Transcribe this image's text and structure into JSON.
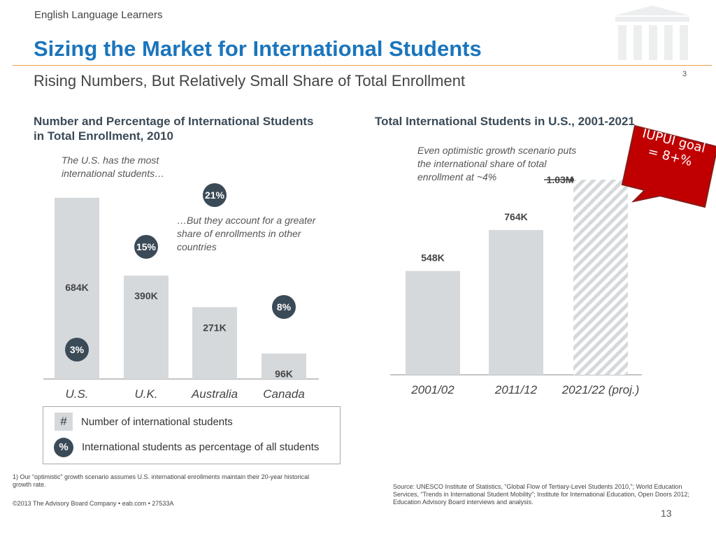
{
  "header": {
    "kicker": "English Language Learners",
    "title": "Sizing the Market for International Students",
    "subtitle": "Rising Numbers, But Relatively Small Share of Total Enrollment",
    "page_small": "3"
  },
  "left_chart": {
    "note_top": "The U.S. has the most international students…",
    "note_mid": "…But they account for a greater share of enrollments in other countries"
  },
  "right_chart": {
    "note": "Even optimistic growth scenario puts the international share of total enrollment at ~4%"
  },
  "legend": {
    "hash_symbol": "#",
    "hash_label": "Number of international students",
    "pct_symbol": "%",
    "pct_label": "International students as percentage of all students"
  },
  "callout": {
    "text": "IUPUI goal = 8+%",
    "color": "#c00000"
  },
  "footer": {
    "footnote": "1) Our “optimistic” growth scenario assumes U.S. international enrollments maintain their 20-year historical growth rate.",
    "copyright": "©2013 The Advisory Board Company • eab.com • 27533A",
    "source": "Source: UNESCO Institute of Statistics, “Global Flow of Tertiary-Level Students 2010,”; World Education Services, “Trends in International Student Mobility”; Institute for International Education, Open Doors 2012; Education Advisory Board interviews and analysis.",
    "page": "13"
  },
  "colors": {
    "bar": "#d5d9dc",
    "bubble": "#3b4a57",
    "title": "#1b75bc",
    "rule": "#e8a043"
  },
  "chart_data": [
    {
      "type": "bar",
      "title": "Number and Percentage of International Students in Total Enrollment, 2010",
      "categories": [
        "U.S.",
        "U.K.",
        "Australia",
        "Canada"
      ],
      "values": [
        684,
        390,
        271,
        96
      ],
      "value_labels": [
        "684K",
        "390K",
        "271K",
        "96K"
      ],
      "percent_values": [
        3,
        15,
        21,
        8
      ],
      "percent_labels": [
        "3%",
        "15%",
        "21%",
        "8%"
      ],
      "ylim": [
        0,
        700
      ],
      "grid": false
    },
    {
      "type": "bar",
      "title": "Total International Students in U.S., 2001-2021",
      "categories": [
        "2001/02",
        "2011/12",
        "2021/22 (proj.)"
      ],
      "values": [
        548,
        764,
        1030
      ],
      "value_labels": [
        "548K",
        "764K",
        "1.03M"
      ],
      "projected": [
        false,
        false,
        true
      ],
      "ylim": [
        0,
        1050
      ],
      "grid": false
    }
  ]
}
